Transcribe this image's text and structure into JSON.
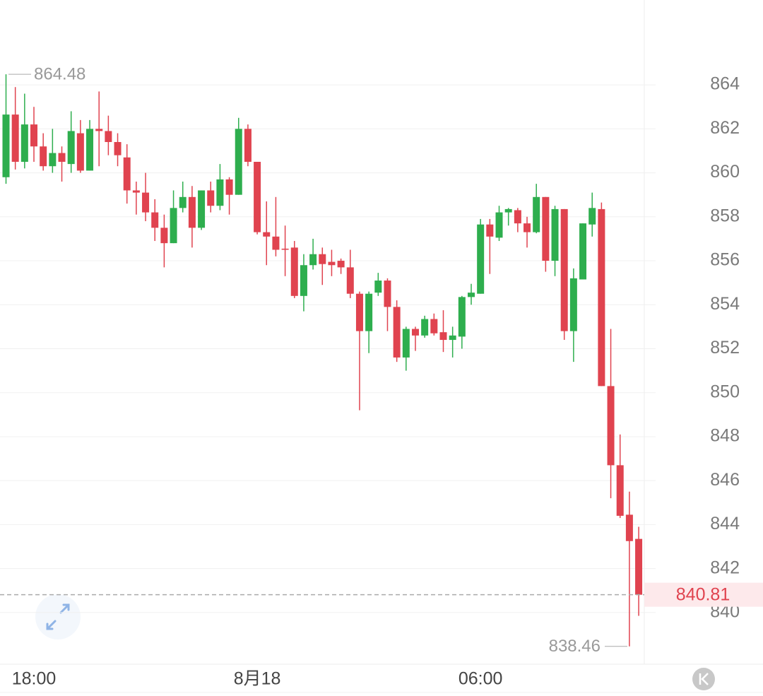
{
  "chart_data": {
    "type": "candlestick",
    "categories": [
      null,
      null,
      null,
      "18:00",
      null,
      null,
      null,
      null,
      null,
      null,
      null,
      null,
      null,
      null,
      null,
      null,
      null,
      null,
      null,
      null,
      null,
      null,
      null,
      null,
      null,
      null,
      null,
      "8月18",
      null,
      null,
      null,
      null,
      null,
      null,
      null,
      null,
      null,
      null,
      null,
      null,
      null,
      null,
      null,
      null,
      null,
      null,
      null,
      null,
      null,
      null,
      null,
      "06:00",
      null,
      null,
      null,
      null,
      null,
      null,
      null,
      null,
      null,
      null,
      null,
      null,
      null,
      null,
      null,
      null,
      null
    ],
    "open": [
      859.8,
      862.65,
      860.5,
      862.2,
      861.2,
      860.3,
      860.9,
      860.4,
      861.8,
      860.1,
      862.0,
      861.9,
      861.4,
      860.7,
      859.2,
      859.1,
      858.2,
      857.5,
      856.8,
      858.4,
      858.9,
      857.5,
      859.2,
      858.5,
      859.7,
      859.0,
      862.0,
      860.5,
      857.3,
      857.1,
      856.55,
      856.6,
      854.4,
      855.8,
      856.3,
      855.95,
      856.0,
      855.7,
      854.5,
      852.8,
      854.55,
      855.1,
      853.9,
      851.6,
      852.9,
      852.6,
      853.35,
      852.75,
      852.4,
      852.55,
      854.35,
      854.5,
      857.65,
      857.05,
      858.2,
      858.3,
      857.7,
      857.3,
      858.9,
      856.0,
      858.35,
      852.8,
      855.15,
      857.65,
      858.35,
      850.3,
      846.7,
      844.45,
      843.35
    ],
    "high": [
      864.48,
      863.9,
      863.6,
      863.0,
      861.8,
      862.0,
      861.2,
      862.8,
      862.4,
      862.4,
      863.7,
      862.6,
      861.8,
      861.3,
      859.6,
      860.0,
      858.8,
      858.1,
      859.2,
      859.6,
      859.4,
      859.2,
      859.6,
      860.4,
      859.8,
      862.5,
      862.2,
      860.5,
      858.7,
      858.9,
      857.6,
      856.9,
      856.3,
      857.0,
      856.6,
      856.5,
      856.1,
      856.5,
      854.6,
      854.6,
      855.45,
      855.2,
      854.2,
      853.0,
      853.0,
      853.5,
      853.6,
      853.75,
      853.0,
      854.4,
      854.95,
      857.9,
      857.9,
      858.5,
      858.4,
      858.4,
      858.0,
      859.5,
      858.9,
      858.5,
      858.35,
      855.65,
      857.7,
      859.1,
      858.65,
      852.9,
      848.1,
      845.5,
      843.9
    ],
    "low": [
      859.5,
      860.15,
      860.2,
      860.5,
      860.1,
      860.0,
      859.6,
      860.0,
      860.0,
      860.1,
      860.3,
      860.8,
      860.3,
      858.6,
      858.1,
      857.8,
      856.9,
      855.7,
      856.8,
      858.2,
      856.6,
      857.4,
      858.2,
      858.3,
      858.1,
      859.0,
      860.3,
      857.2,
      855.8,
      856.2,
      855.3,
      854.3,
      853.7,
      855.6,
      854.9,
      855.3,
      855.4,
      854.3,
      849.2,
      851.8,
      854.4,
      852.8,
      851.4,
      851.0,
      851.9,
      852.5,
      852.6,
      851.85,
      851.6,
      852.0,
      854.0,
      854.5,
      855.4,
      856.9,
      857.6,
      857.3,
      856.6,
      857.25,
      855.5,
      855.3,
      852.4,
      851.4,
      855.15,
      857.1,
      850.3,
      845.2,
      844.3,
      838.46,
      839.85
    ],
    "close": [
      862.65,
      860.5,
      862.2,
      861.2,
      860.3,
      860.9,
      860.5,
      861.9,
      860.1,
      862.0,
      861.9,
      861.4,
      860.8,
      859.2,
      859.1,
      858.2,
      857.5,
      856.8,
      858.4,
      858.9,
      857.5,
      859.2,
      858.5,
      859.7,
      859.0,
      862.0,
      860.5,
      857.3,
      857.1,
      856.5,
      856.5,
      854.4,
      855.8,
      856.3,
      855.85,
      855.8,
      855.7,
      854.5,
      852.8,
      854.5,
      855.1,
      853.9,
      851.6,
      852.9,
      852.6,
      853.35,
      852.7,
      852.4,
      852.6,
      854.35,
      854.55,
      857.65,
      857.1,
      858.2,
      858.35,
      857.7,
      857.3,
      858.9,
      856.0,
      858.35,
      852.8,
      855.2,
      857.7,
      858.4,
      850.3,
      846.7,
      844.4,
      843.25,
      840.81
    ],
    "up_color": "#2eae4e",
    "down_color": "#e0434f",
    "ylim": [
      837.65,
      867.86
    ],
    "yticks": [
      840,
      842,
      844,
      846,
      848,
      850,
      852,
      854,
      856,
      858,
      860,
      862,
      864
    ],
    "grid": true,
    "high_label": 864.48,
    "low_label": 838.46,
    "last_price": 840.81
  }
}
